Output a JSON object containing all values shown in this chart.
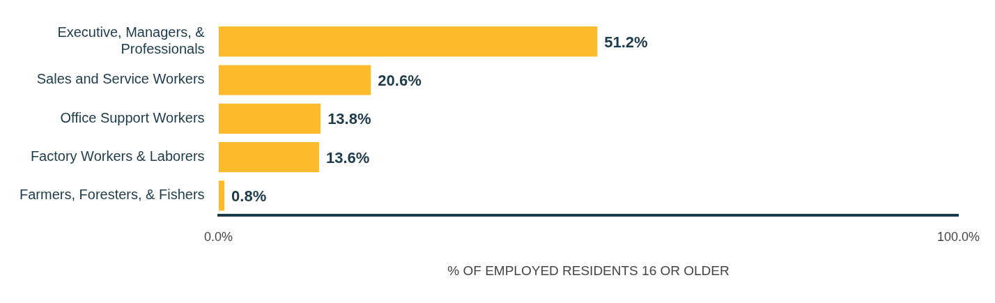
{
  "chart_data": {
    "type": "bar",
    "orientation": "horizontal",
    "xlabel": "% OF EMPLOYED RESIDENTS 16 OR OLDER",
    "categories": [
      "Executive, Managers, & Professionals",
      "Sales and Service Workers",
      "Office Support Workers",
      "Factory Workers & Laborers",
      "Farmers, Foresters, & Fishers"
    ],
    "values": [
      51.2,
      20.6,
      13.8,
      13.6,
      0.8
    ],
    "value_labels": [
      "51.2%",
      "20.6%",
      "13.8%",
      "13.6%",
      "0.8%"
    ],
    "color": "#fbbb2d",
    "xlim": [
      0,
      100
    ],
    "xticks": [
      {
        "value": 0,
        "label": "0.0%"
      },
      {
        "value": 100,
        "label": "100.0%"
      }
    ],
    "grid": false,
    "legend": false
  }
}
